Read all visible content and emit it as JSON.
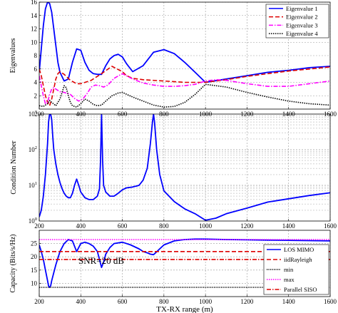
{
  "chart_data": [
    {
      "type": "line",
      "title": "",
      "xlabel": "",
      "ylabel": "Eigenvalues",
      "xlim": [
        200,
        1600
      ],
      "ylim": [
        0,
        16
      ],
      "xticks": [
        "200",
        "400",
        "600",
        "800",
        "1000",
        "1200",
        "1400",
        "1600"
      ],
      "yticks": [
        "2",
        "4",
        "6",
        "8",
        "10",
        "12",
        "14",
        "16"
      ],
      "legend_position": "top-right",
      "grid": true,
      "series": [
        {
          "name": "Eigenvalue 1",
          "color": "#0000ff",
          "dash": "solid",
          "x": [
            200,
            210,
            220,
            230,
            240,
            250,
            260,
            270,
            280,
            290,
            300,
            320,
            340,
            360,
            380,
            400,
            420,
            440,
            460,
            480,
            500,
            520,
            540,
            560,
            580,
            600,
            620,
            650,
            700,
            750,
            800,
            850,
            900,
            950,
            1000,
            1100,
            1200,
            1300,
            1400,
            1500,
            1600
          ],
          "y": [
            5.5,
            9,
            12.5,
            15,
            16,
            15.8,
            14.5,
            12,
            9.5,
            7,
            5.5,
            4.2,
            4.5,
            7,
            9,
            8.8,
            7,
            5.8,
            5.3,
            5.2,
            5.2,
            6.5,
            7.5,
            8,
            8.2,
            7.8,
            6.8,
            5.6,
            6.5,
            8.5,
            8.9,
            8.3,
            7,
            5.5,
            4,
            4.5,
            5,
            5.5,
            5.8,
            6.2,
            6.4
          ]
        },
        {
          "name": "Eigenvalue 2",
          "color": "#dd0000",
          "dash": "6,3",
          "x": [
            200,
            210,
            220,
            230,
            240,
            250,
            260,
            270,
            280,
            290,
            300,
            320,
            350,
            380,
            400,
            450,
            500,
            550,
            600,
            620,
            650,
            700,
            800,
            900,
            1000,
            1100,
            1200,
            1300,
            1400,
            1500,
            1600
          ],
          "y": [
            6,
            5,
            3.5,
            2,
            1,
            0.5,
            1.5,
            3,
            4.5,
            5.3,
            5.6,
            5.2,
            4.3,
            3.8,
            3.8,
            4.3,
            5.3,
            6.4,
            5.6,
            5,
            4.6,
            4.4,
            4.2,
            4,
            4,
            4.4,
            4.9,
            5.3,
            5.7,
            6,
            6.3
          ]
        },
        {
          "name": "Eigenvalue 3",
          "color": "#ff00ff",
          "dash": "6,2,1.5,2",
          "x": [
            200,
            210,
            220,
            230,
            240,
            250,
            260,
            270,
            280,
            290,
            300,
            320,
            350,
            370,
            390,
            410,
            430,
            450,
            470,
            490,
            510,
            530,
            560,
            600,
            650,
            700,
            750,
            800,
            850,
            900,
            950,
            1000,
            1050,
            1100,
            1200,
            1300,
            1400,
            1500,
            1600
          ],
          "y": [
            5,
            3.5,
            2,
            0.8,
            1,
            2.2,
            3,
            3.2,
            3,
            2.8,
            2.6,
            2.5,
            2.2,
            1.6,
            1.2,
            1.5,
            2.3,
            3.3,
            3.6,
            3.5,
            3.3,
            3.6,
            4.6,
            5.3,
            4.5,
            3.9,
            3.6,
            3.4,
            3.4,
            3.5,
            3.7,
            4.2,
            4.4,
            4.3,
            3.8,
            3.4,
            3.4,
            3.8,
            4.2
          ]
        },
        {
          "name": "Eigenvalue 4",
          "color": "#000000",
          "dash": "1.5,1.5",
          "x": [
            200,
            220,
            240,
            250,
            260,
            280,
            300,
            310,
            320,
            330,
            340,
            350,
            360,
            380,
            400,
            420,
            440,
            460,
            480,
            500,
            520,
            550,
            580,
            600,
            650,
            700,
            750,
            800,
            850,
            900,
            950,
            1000,
            1100,
            1200,
            1300,
            1400,
            1500,
            1600
          ],
          "y": [
            0.5,
            0.4,
            0.8,
            1.3,
            1,
            0.5,
            1.5,
            2.5,
            3.5,
            3.2,
            2,
            1,
            0.5,
            0.3,
            0.8,
            1.5,
            1.2,
            0.7,
            0.5,
            0.6,
            1.2,
            2,
            2.4,
            2.5,
            1.8,
            1.2,
            0.6,
            0.3,
            0.4,
            1,
            2.2,
            3.7,
            3.3,
            2.5,
            1.8,
            1.2,
            0.8,
            0.6
          ]
        }
      ]
    },
    {
      "type": "line",
      "title": "",
      "xlabel": "",
      "ylabel": "Condition Number",
      "yscale": "log",
      "xlim": [
        200,
        1600
      ],
      "ylim": [
        1,
        1000
      ],
      "xticks": [
        "200",
        "400",
        "600",
        "800",
        "1000",
        "1200",
        "1400",
        "1600"
      ],
      "grid": true,
      "series": [
        {
          "name": "",
          "color": "#0000ff",
          "dash": "solid",
          "x": [
            200,
            210,
            220,
            230,
            240,
            245,
            250,
            255,
            260,
            265,
            270,
            280,
            290,
            300,
            310,
            320,
            330,
            340,
            350,
            360,
            370,
            380,
            390,
            400,
            420,
            440,
            460,
            480,
            490,
            495,
            500,
            505,
            510,
            520,
            540,
            560,
            580,
            600,
            620,
            650,
            680,
            700,
            720,
            735,
            745,
            750,
            755,
            765,
            780,
            800,
            850,
            900,
            950,
            1000,
            1050,
            1100,
            1200,
            1300,
            1400,
            1500,
            1600
          ],
          "y": [
            1.3,
            2,
            5,
            20,
            150,
            600,
            1000,
            1000,
            700,
            250,
            100,
            40,
            20,
            12,
            8,
            6,
            5,
            4.5,
            4.5,
            6,
            10,
            15,
            10,
            6.5,
            4.5,
            4,
            4,
            5,
            8,
            50,
            1000,
            50,
            10,
            6.5,
            5,
            5,
            6,
            7.5,
            8.5,
            9,
            10,
            14,
            30,
            150,
            600,
            1000,
            600,
            100,
            20,
            7,
            3.5,
            2.2,
            1.6,
            1.05,
            1.2,
            1.6,
            2.3,
            3.4,
            4.2,
            5.2,
            6.2
          ]
        }
      ]
    },
    {
      "type": "line",
      "title": "",
      "xlabel": "TX-RX range (m)",
      "ylabel": "Capacity (Bits/s/Hz)",
      "xlim": [
        200,
        1600
      ],
      "ylim": [
        5,
        30
      ],
      "xticks": [
        "200",
        "400",
        "600",
        "800",
        "1000",
        "1200",
        "1400",
        "1600"
      ],
      "yticks": [
        "10",
        "15",
        "20",
        "25"
      ],
      "legend_position": "bottom-right",
      "annotation": "SNR=20 dB",
      "grid": true,
      "series": [
        {
          "name": "LOS MIMO",
          "color": "#0000ff",
          "dash": "solid",
          "x": [
            200,
            210,
            220,
            230,
            240,
            245,
            250,
            255,
            260,
            270,
            280,
            290,
            300,
            320,
            340,
            360,
            370,
            380,
            390,
            400,
            420,
            440,
            460,
            480,
            490,
            500,
            510,
            520,
            540,
            560,
            600,
            640,
            680,
            700,
            720,
            735,
            750,
            760,
            780,
            800,
            850,
            900,
            950,
            1000,
            1050,
            1100,
            1200,
            1300,
            1400,
            1500,
            1600
          ],
          "y": [
            24.5,
            22,
            19,
            15,
            11,
            9,
            8.5,
            9,
            11,
            14,
            17,
            19.5,
            22,
            25,
            26.5,
            26,
            24,
            22,
            23.5,
            25,
            25.5,
            25,
            24,
            22,
            19,
            16,
            18,
            21,
            23.5,
            25,
            25.5,
            24.5,
            23,
            22,
            21.5,
            21,
            20.8,
            21.5,
            23,
            24.5,
            26,
            26.5,
            26.7,
            26.7,
            26.6,
            26.5,
            26.4,
            26.3,
            26.2,
            26.1,
            26
          ]
        },
        {
          "name": "iidRayleigh",
          "color": "#dd0000",
          "dash": "6,3",
          "x": [
            200,
            1600
          ],
          "y": [
            22,
            22
          ]
        },
        {
          "name": "min",
          "color": "#000000",
          "dash": "1.2,1.3",
          "x": [
            200,
            1600
          ],
          "y": [
            8.5,
            8.5
          ]
        },
        {
          "name": "max",
          "color": "#ff00ff",
          "dash": "1.5,1.5",
          "x": [
            200,
            1600
          ],
          "y": [
            26.5,
            26.5
          ]
        },
        {
          "name": "Parallel SISO",
          "color": "#dd0000",
          "dash": "6,2,1.5,2",
          "x": [
            200,
            1600
          ],
          "y": [
            19,
            19
          ]
        }
      ]
    }
  ]
}
